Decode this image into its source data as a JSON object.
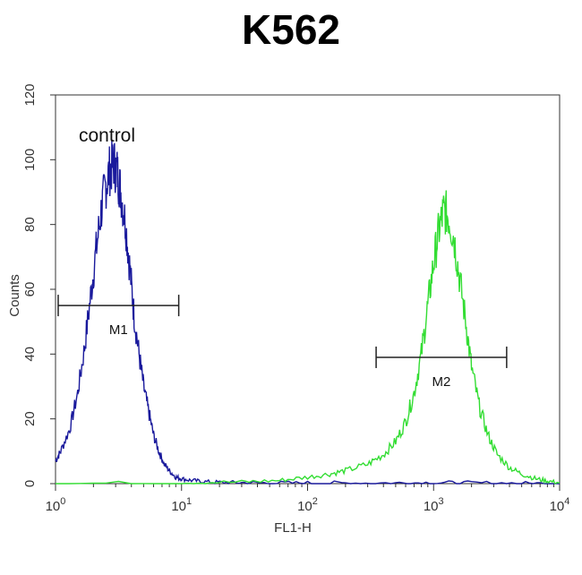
{
  "chart_data": {
    "type": "line",
    "title": "K562",
    "xlabel": "FL1-H",
    "ylabel": "Counts",
    "x_scale": "log",
    "xlim": [
      1,
      10000
    ],
    "ylim": [
      0,
      120
    ],
    "x_tick_labels": [
      {
        "base": "10",
        "exp": "0"
      },
      {
        "base": "10",
        "exp": "1"
      },
      {
        "base": "10",
        "exp": "2"
      },
      {
        "base": "10",
        "exp": "3"
      },
      {
        "base": "10",
        "exp": "4"
      }
    ],
    "y_ticks": [
      "0",
      "20",
      "40",
      "60",
      "80",
      "100",
      "120"
    ],
    "grid": false,
    "annotations": [
      {
        "text": "control"
      },
      {
        "text": "M1"
      },
      {
        "text": "M2"
      }
    ],
    "markers": [
      {
        "label": "M1",
        "x_start": 1.05,
        "x_end": 9.5,
        "y": 55
      },
      {
        "label": "M2",
        "x_start": 350,
        "x_end": 3800,
        "y": 39
      }
    ],
    "series": [
      {
        "color": "#1a1a9c",
        "x": [
          1.0,
          1.1,
          1.3,
          1.5,
          1.7,
          1.9,
          2.1,
          2.3,
          2.5,
          2.7,
          2.9,
          3.1,
          3.3,
          3.6,
          3.9,
          4.2,
          4.6,
          5.0,
          5.5,
          6.0,
          6.6,
          7.3,
          8.0,
          9.0,
          10.0,
          12.0,
          15.0,
          20.0,
          30.0,
          50.0,
          100.0,
          200.0,
          500.0,
          1000.0,
          2000.0,
          5000.0,
          10000.0
        ],
        "y": [
          7,
          10,
          17,
          28,
          42,
          58,
          72,
          84,
          92,
          97,
          99,
          96,
          90,
          80,
          66,
          52,
          40,
          30,
          22,
          15,
          10,
          6,
          4,
          2,
          1.5,
          1,
          0.6,
          0.4,
          0.3,
          0.2,
          0.2,
          0.2,
          0.2,
          0.3,
          0.2,
          0.1,
          0
        ]
      },
      {
        "color": "#33dd33",
        "x": [
          1.0,
          10.0,
          30.0,
          60.0,
          100.0,
          150.0,
          200.0,
          300.0,
          400.0,
          500.0,
          600.0,
          700.0,
          800.0,
          900.0,
          1000.0,
          1100.0,
          1200.0,
          1300.0,
          1450.0,
          1600.0,
          1800.0,
          2000.0,
          2300.0,
          2700.0,
          3200.0,
          4000.0,
          5000.0,
          6500.0,
          8000.0,
          10000.0
        ],
        "y": [
          0,
          0.3,
          0.5,
          1,
          2,
          3,
          4,
          6,
          9,
          13,
          19,
          28,
          40,
          55,
          68,
          78,
          84,
          83,
          76,
          64,
          50,
          36,
          24,
          15,
          9,
          5,
          3,
          1.5,
          0.8,
          0.3
        ]
      }
    ]
  }
}
